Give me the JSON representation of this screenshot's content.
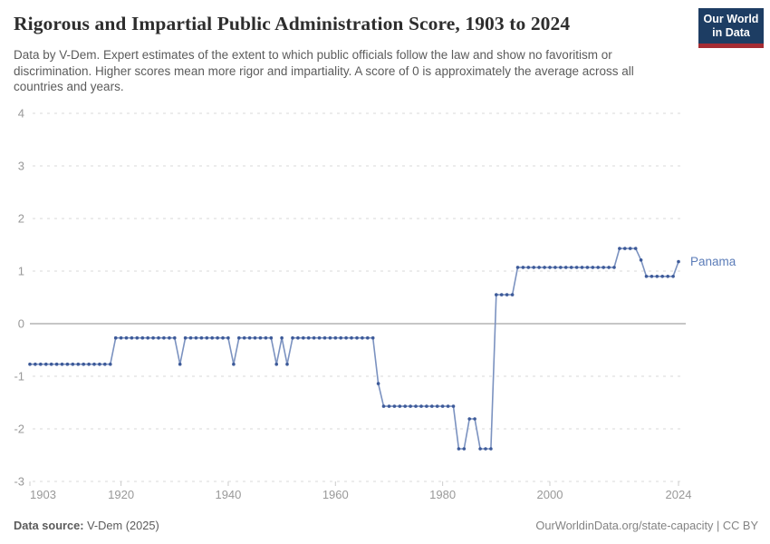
{
  "header": {
    "title": "Rigorous and Impartial Public Administration Score, 1903 to 2024",
    "subtitle": "Data by V-Dem. Expert estimates of the extent to which public officials follow the law and show no favoritism or discrimination. Higher scores mean more rigor and impartiality. A score of 0 is approximately the average across all countries and years.",
    "logo": {
      "line1": "Our World",
      "line2": "in Data",
      "bg_color": "#1d3d63",
      "accent_color": "#a52c33"
    }
  },
  "footer": {
    "source_label": "Data source:",
    "source_value": "V-Dem (2025)",
    "right_text": "OurWorldinData.org/state-capacity | CC BY"
  },
  "chart_data": {
    "type": "line",
    "entity": "Panama",
    "title": "Rigorous and Impartial Public Administration Score, 1903 to 2024",
    "x": {
      "min": 1903,
      "max": 2024,
      "ticks": [
        1903,
        1920,
        1940,
        1960,
        1980,
        2000,
        2024
      ]
    },
    "y": {
      "min": -3,
      "max": 4,
      "ticks": [
        4,
        3,
        2,
        1,
        0,
        -1,
        -2,
        -3
      ]
    },
    "grid": true,
    "legend": "end-of-line label",
    "theme": {
      "line": "#7b92c0",
      "dots": "#3d5a99",
      "entity_label": "#5b7cb8",
      "gridline": "#dadada",
      "zero_line": "#a3a3a3",
      "tick_text": "#999999"
    },
    "segments": [
      {
        "from": 1903,
        "to": 1918,
        "value": -0.77
      },
      {
        "from": 1919,
        "to": 1930,
        "value": -0.27
      },
      {
        "from": 1931,
        "to": 1931,
        "value": -0.77
      },
      {
        "from": 1932,
        "to": 1940,
        "value": -0.27
      },
      {
        "from": 1941,
        "to": 1941,
        "value": -0.77
      },
      {
        "from": 1942,
        "to": 1948,
        "value": -0.27
      },
      {
        "from": 1949,
        "to": 1949,
        "value": -0.77
      },
      {
        "from": 1950,
        "to": 1950,
        "value": -0.27
      },
      {
        "from": 1951,
        "to": 1951,
        "value": -0.77
      },
      {
        "from": 1952,
        "to": 1967,
        "value": -0.27
      },
      {
        "from": 1968,
        "to": 1968,
        "value": -1.14
      },
      {
        "from": 1969,
        "to": 1982,
        "value": -1.57
      },
      {
        "from": 1983,
        "to": 1984,
        "value": -2.38
      },
      {
        "from": 1985,
        "to": 1986,
        "value": -1.81
      },
      {
        "from": 1987,
        "to": 1989,
        "value": -2.38
      },
      {
        "from": 1990,
        "to": 1993,
        "value": 0.55
      },
      {
        "from": 1994,
        "to": 2012,
        "value": 1.07
      },
      {
        "from": 2013,
        "to": 2016,
        "value": 1.43
      },
      {
        "from": 2017,
        "to": 2017,
        "value": 1.21
      },
      {
        "from": 2018,
        "to": 2023,
        "value": 0.9
      },
      {
        "from": 2024,
        "to": 2024,
        "value": 1.18
      }
    ]
  }
}
